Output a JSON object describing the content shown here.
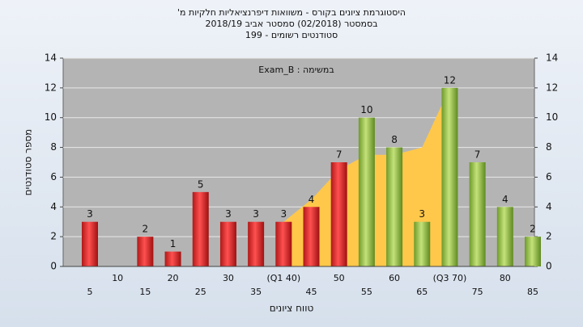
{
  "chart_data": {
    "type": "bar",
    "title_lines": [
      "היסטוגרמת ציונים בקורס - משוואות דיפרנציאליות חלקיות מ'",
      "בסמסטר (02/2018) סמסטר אביב 2018/19",
      "סטודנטים רשומים - 199"
    ],
    "annotation": "במשימה : Exam_B",
    "ylabel": "מספר סטודנטים",
    "xlabel": "טווח ציונים",
    "categories": [
      "5",
      "10",
      "15",
      "20",
      "25",
      "30",
      "35",
      "(Q1 40)",
      "45",
      "50",
      "55",
      "60",
      "65",
      "(Q3 70)",
      "75",
      "80",
      "85"
    ],
    "values": [
      3,
      0,
      2,
      1,
      5,
      3,
      3,
      3,
      4,
      7,
      10,
      8,
      3,
      12,
      7,
      4,
      2
    ],
    "colors": [
      "red",
      "red",
      "red",
      "red",
      "red",
      "red",
      "red",
      "red",
      "red",
      "red",
      "green",
      "green",
      "green",
      "green",
      "green",
      "green",
      "green"
    ],
    "area": {
      "color": "#ffc84a",
      "values": [
        null,
        null,
        null,
        null,
        null,
        null,
        null,
        3,
        4.5,
        6.5,
        7.5,
        7.5,
        8,
        12,
        null,
        null,
        null
      ]
    },
    "ylim": [
      0,
      14
    ],
    "yticks": [
      0,
      2,
      4,
      6,
      8,
      10,
      12,
      14
    ],
    "grid": true
  }
}
